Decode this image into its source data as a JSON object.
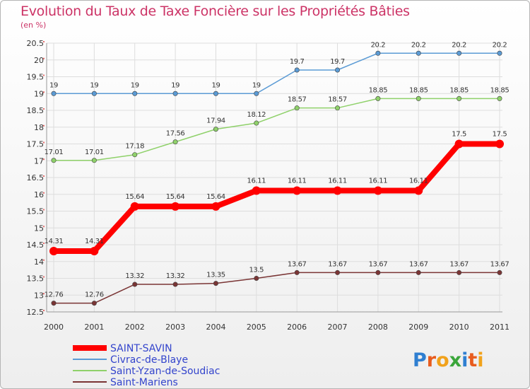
{
  "header": {
    "title": "Evolution du Taux de Taxe Foncière sur les Propriétés Bâties",
    "subtitle": "(en %)"
  },
  "brand": {
    "logo_text": "Proxiti"
  },
  "colors": {
    "grid": "#dddddd",
    "axis": "#999999",
    "title": "#cc3366",
    "legend_text": "#3344cc"
  },
  "chart_data": {
    "type": "line",
    "title": "Evolution du Taux de Taxe Foncière sur les Propriétés Bâties",
    "ylabel": "(en %)",
    "xlabel": "",
    "x": [
      "2000",
      "2001",
      "2002",
      "2003",
      "2004",
      "2005",
      "2006",
      "2007",
      "2008",
      "2009",
      "2010",
      "2011"
    ],
    "ylim": [
      12.5,
      20.5
    ],
    "yticks": [
      "12.5",
      "13",
      "13.5",
      "14",
      "14.5",
      "15",
      "15.5",
      "16",
      "16.5",
      "17",
      "17.5",
      "18",
      "18.5",
      "19",
      "19.5",
      "20",
      "20.5"
    ],
    "grid": true,
    "legend_position": "bottom-left",
    "series": [
      {
        "name": "SAINT-SAVIN",
        "color": "#ff0000",
        "values": [
          14.31,
          14.31,
          15.64,
          15.64,
          15.64,
          16.11,
          16.11,
          16.11,
          16.11,
          16.11,
          17.5,
          17.5
        ],
        "labels": [
          "14.31",
          "14.31",
          "15.64",
          "15.64",
          "15.64",
          "16.11",
          "16.11",
          "16.11",
          "16.11",
          "16.11",
          "17.5",
          "17.5"
        ]
      },
      {
        "name": "Civrac-de-Blaye",
        "color": "#5b9bd5",
        "values": [
          19,
          19,
          19,
          19,
          19,
          19,
          19.7,
          19.7,
          20.2,
          20.2,
          20.2,
          20.2
        ],
        "labels": [
          "19",
          "19",
          "19",
          "19",
          "19",
          "19",
          "19.7",
          "19.7",
          "20.2",
          "20.2",
          "20.2",
          "20.2"
        ]
      },
      {
        "name": "Saint-Yzan-de-Soudiac",
        "color": "#8fd16a",
        "values": [
          17.01,
          17.01,
          17.18,
          17.56,
          17.94,
          18.12,
          18.57,
          18.57,
          18.85,
          18.85,
          18.85,
          18.85
        ],
        "labels": [
          "17.01",
          "17.01",
          "17.18",
          "17.56",
          "17.94",
          "18.12",
          "18.57",
          "18.57",
          "18.85",
          "18.85",
          "18.85",
          "18.85"
        ]
      },
      {
        "name": "Saint-Mariens",
        "color": "#7a3535",
        "values": [
          12.76,
          12.76,
          13.32,
          13.32,
          13.35,
          13.5,
          13.67,
          13.67,
          13.67,
          13.67,
          13.67,
          13.67
        ],
        "labels": [
          "12.76",
          "12.76",
          "13.32",
          "13.32",
          "13.35",
          "13.5",
          "13.67",
          "13.67",
          "13.67",
          "13.67",
          "13.67",
          "13.67"
        ]
      }
    ]
  }
}
